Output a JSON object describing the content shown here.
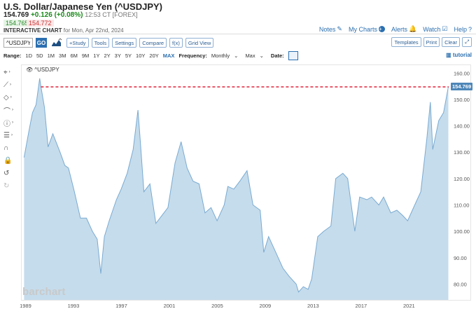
{
  "header": {
    "title": "U.S. Dollar/Japanese Yen (^USDJPY)",
    "last_price": "154.769",
    "change": "+0.126 (+0.08%)",
    "time": "12:53 CT [FOREX]",
    "bid": "154.765",
    "ask": "154.772",
    "chart_label": "INTERACTIVE CHART",
    "date_label": "for Mon, Apr 22nd, 2024"
  },
  "links": {
    "notes": "Notes",
    "my_charts": "My Charts",
    "alerts": "Alerts",
    "watch": "Watch",
    "help": "Help"
  },
  "toolbar": {
    "symbol_value": "^USDJPY",
    "go_label": "GO",
    "study_label": "+Study",
    "tools_label": "Tools",
    "settings_label": "Settings",
    "compare_label": "Compare",
    "fx_label": "f(x)",
    "gridview_label": "Grid View",
    "templates_label": "Templates",
    "print_label": "Print",
    "clear_label": "Clear"
  },
  "range_bar": {
    "range_label": "Range:",
    "ranges": [
      "1D",
      "5D",
      "1M",
      "3M",
      "6M",
      "9M",
      "1Y",
      "2Y",
      "3Y",
      "5Y",
      "10Y",
      "20Y",
      "MAX"
    ],
    "active_range": "MAX",
    "frequency_label": "Frequency:",
    "frequency_value": "Monthly",
    "period_value": "Max",
    "date_label": "Date:",
    "tutorial_label": "tutorial"
  },
  "chart": {
    "symbol_label": "^USDJPY",
    "watermark": "barchart",
    "last_price_label": "154.769",
    "colors": {
      "area_fill": "#c5dcec",
      "area_line": "#7aaad1",
      "ref_line": "#e0233a",
      "price_tag": "#4e86b8"
    }
  },
  "chart_data": {
    "type": "area",
    "title": "",
    "xlabel": "",
    "ylabel": "",
    "x_ticks": [
      "1989",
      "1993",
      "1997",
      "2001",
      "2005",
      "2009",
      "2013",
      "2017",
      "2021"
    ],
    "y_ticks": [
      80,
      90,
      100,
      110,
      120,
      130,
      140,
      150,
      160
    ],
    "ylim": [
      74,
      163
    ],
    "xlim": [
      1988.7,
      2024.33
    ],
    "reference_line": 154.769,
    "series": [
      {
        "x": [
          1988.9,
          1989.3,
          1989.6,
          1989.9,
          1990.2,
          1990.3,
          1990.6,
          1990.9,
          1991.3,
          1991.9,
          1992.3,
          1992.6,
          1993.1,
          1993.6,
          1994.1,
          1994.6,
          1995.0,
          1995.3,
          1995.6,
          1996.0,
          1996.6,
          1997.0,
          1997.5,
          1998.0,
          1998.4,
          1998.6,
          1998.9,
          1999.4,
          1999.9,
          2000.4,
          2000.9,
          2001.5,
          2002.0,
          2002.5,
          2003.0,
          2003.5,
          2004.0,
          2004.5,
          2005.0,
          2005.6,
          2005.9,
          2006.4,
          2006.9,
          2007.5,
          2008.0,
          2008.6,
          2008.9,
          2009.3,
          2009.9,
          2010.5,
          2011.0,
          2011.6,
          2011.8,
          2012.2,
          2012.6,
          2012.9,
          2013.4,
          2013.9,
          2014.5,
          2014.9,
          2015.5,
          2015.9,
          2016.5,
          2016.9,
          2017.5,
          2017.9,
          2018.5,
          2018.9,
          2019.5,
          2020.0,
          2020.5,
          2020.9,
          2021.5,
          2022.0,
          2022.5,
          2022.8,
          2023.0,
          2023.5,
          2023.9,
          2024.3
        ],
        "values": [
          128,
          138,
          145,
          148,
          158,
          155,
          147,
          132,
          137,
          130,
          125,
          124,
          115,
          105,
          105,
          100,
          97,
          84,
          98,
          104,
          112,
          116,
          122,
          131,
          146,
          134,
          115,
          118,
          103,
          106,
          109,
          126,
          134,
          124,
          119,
          118,
          107,
          109,
          104,
          110,
          117,
          116,
          119,
          123,
          110,
          108,
          92,
          98,
          92,
          86,
          83,
          80,
          77,
          79,
          78,
          82,
          98,
          100,
          102,
          120,
          122,
          120,
          100,
          113,
          112,
          113,
          110,
          113,
          107,
          108,
          106,
          104,
          110,
          115,
          135,
          149,
          131,
          142,
          145,
          154.8
        ]
      }
    ]
  }
}
